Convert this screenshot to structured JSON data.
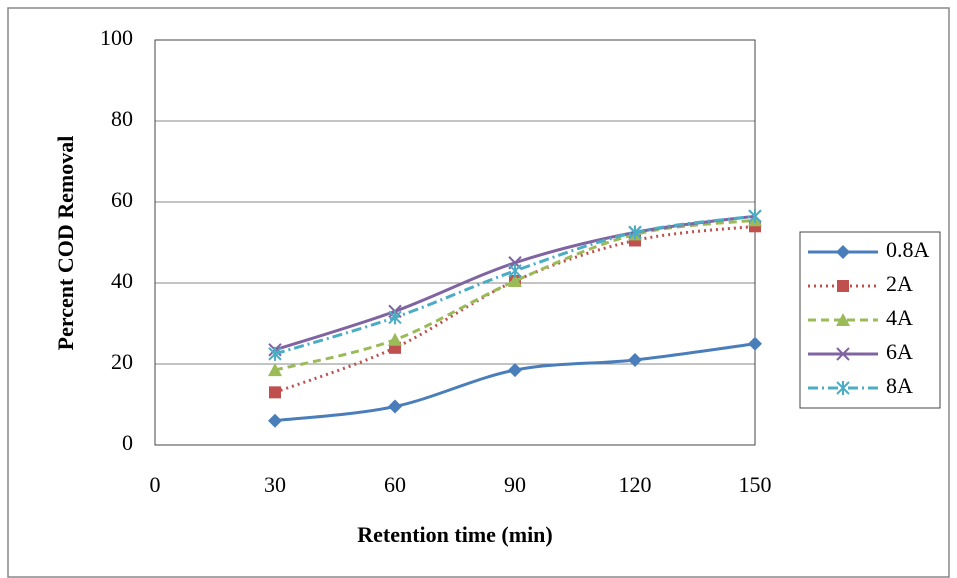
{
  "chart_data": {
    "type": "line",
    "x_label": "Retention time (min)",
    "y_label": "Percent COD Removal",
    "x": [
      30,
      60,
      90,
      120,
      150
    ],
    "series": [
      {
        "name": "0.8A",
        "color": "#4a7ebb",
        "marker": "diamond",
        "dash": "none",
        "values": [
          6,
          9.5,
          18.5,
          21,
          25
        ]
      },
      {
        "name": "2A",
        "color": "#c0504d",
        "marker": "square",
        "dash": "2,4",
        "values": [
          13,
          24,
          40.5,
          50.5,
          54
        ]
      },
      {
        "name": "4A",
        "color": "#9bbb59",
        "marker": "triangle",
        "dash": "8,5",
        "values": [
          18.5,
          26,
          40.5,
          52,
          55.5
        ]
      },
      {
        "name": "6A",
        "color": "#8064a2",
        "marker": "cross",
        "dash": "none",
        "values": [
          23.5,
          33,
          45,
          52.5,
          56.5
        ]
      },
      {
        "name": "8A",
        "color": "#4bacc6",
        "marker": "star",
        "dash": "10,4,2,4",
        "values": [
          22.5,
          31.5,
          43,
          52.5,
          56.5
        ]
      }
    ],
    "xlim": [
      0,
      150
    ],
    "xticks": [
      0,
      30,
      60,
      90,
      120,
      150
    ],
    "ylim": [
      0,
      100
    ],
    "yticks": [
      0,
      20,
      40,
      60,
      80,
      100
    ],
    "grid": true,
    "legend": "right"
  }
}
